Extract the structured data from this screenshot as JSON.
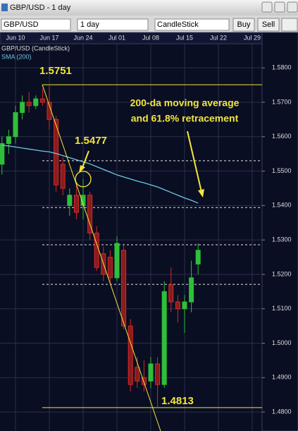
{
  "window": {
    "title": "GBP/USD - 1 day"
  },
  "toolbar": {
    "symbol": "GBP/USD",
    "interval": "1 day",
    "chart_style": "CandleStick",
    "buttons": [
      "Buy",
      "Sell"
    ]
  },
  "chart_data": {
    "type": "candlestick",
    "categories": [
      null,
      null,
      "Jun 10",
      null,
      null,
      null,
      null,
      "Jun 17",
      null,
      null,
      null,
      null,
      "Jun 24",
      null,
      null,
      null,
      null,
      "Jul 01",
      null,
      null,
      null,
      null,
      "Jul 08",
      null,
      null,
      null,
      null,
      "Jul 15",
      null,
      null,
      null,
      null,
      "Jul 22",
      null,
      null,
      null,
      null,
      "Jul 29"
    ],
    "series": [
      {
        "name": "GBP/USD (CandleStick)",
        "up_color": "#2fbf3a",
        "down_color": "#d42a2a",
        "open": [
          1.552,
          1.558,
          1.56,
          1.567,
          1.57,
          1.569,
          1.571,
          1.57,
          1.565,
          1.552,
          1.54,
          1.543,
          1.54,
          1.543,
          1.532,
          1.526,
          1.525,
          1.519,
          1.527,
          1.505,
          1.493,
          1.49,
          1.489,
          1.494,
          1.488,
          1.517,
          1.512,
          1.51,
          1.512,
          1.523,
          null,
          null,
          null,
          null,
          null,
          null,
          null,
          null
        ],
        "high": [
          1.56,
          1.562,
          1.569,
          1.572,
          1.573,
          1.572,
          1.574,
          1.5751,
          1.566,
          1.554,
          1.545,
          1.546,
          1.5477,
          1.544,
          1.534,
          1.528,
          1.527,
          1.531,
          1.529,
          1.507,
          1.496,
          1.495,
          1.496,
          1.496,
          1.518,
          1.522,
          1.514,
          1.514,
          1.524,
          1.529,
          null,
          null,
          null,
          null,
          null,
          null,
          null,
          null
        ],
        "low": [
          1.549,
          1.555,
          1.558,
          1.565,
          1.567,
          1.568,
          1.569,
          1.562,
          1.544,
          1.543,
          1.537,
          1.536,
          1.536,
          1.53,
          1.521,
          1.518,
          1.517,
          1.518,
          1.504,
          1.486,
          1.487,
          1.486,
          1.487,
          1.4813,
          1.487,
          1.509,
          1.506,
          1.503,
          1.509,
          1.52,
          null,
          null,
          null,
          null,
          null,
          null,
          null,
          null
        ],
        "close": [
          1.558,
          1.56,
          1.567,
          1.57,
          1.569,
          1.571,
          1.57,
          1.565,
          1.546,
          1.545,
          1.543,
          1.538,
          1.543,
          1.532,
          1.522,
          1.52,
          1.519,
          1.529,
          1.505,
          1.488,
          1.489,
          1.488,
          1.494,
          1.488,
          1.515,
          1.512,
          1.51,
          1.512,
          1.519,
          1.527,
          null,
          null,
          null,
          null,
          null,
          null,
          null,
          null
        ]
      },
      {
        "name": "SMA (200)",
        "color": "#6cc7e6",
        "values": [
          1.5575,
          1.5573,
          1.557,
          1.5567,
          1.5564,
          1.5561,
          1.5558,
          1.5556,
          1.5551,
          1.5545,
          1.5539,
          1.5533,
          1.5527,
          1.5521,
          1.5513,
          1.5505,
          1.5497,
          1.5489,
          1.5483,
          1.5477,
          1.5471,
          1.5466,
          1.546,
          1.5454,
          1.5446,
          1.5438,
          1.543,
          1.5422,
          1.5415,
          1.5407,
          null,
          null,
          null,
          null,
          null,
          null,
          null,
          null
        ]
      }
    ],
    "ylim": [
      1.4745,
      1.587
    ],
    "yticks": [
      {
        "value": 1.58,
        "label": "1.5800"
      },
      {
        "value": 1.57,
        "label": "1.5700"
      },
      {
        "value": 1.56,
        "label": "1.5600"
      },
      {
        "value": 1.55,
        "label": "1.5500"
      },
      {
        "value": 1.54,
        "label": "1.5400"
      },
      {
        "value": 1.53,
        "label": "1.5300"
      },
      {
        "value": 1.52,
        "label": "1.5200"
      },
      {
        "value": 1.51,
        "label": "1.5100"
      },
      {
        "value": 1.5,
        "label": "1.5000"
      },
      {
        "value": 1.49,
        "label": "1.4900"
      },
      {
        "value": 1.48,
        "label": "1.4800"
      }
    ],
    "grid": true,
    "levels": [
      {
        "value": 1.5751,
        "style": "solid"
      },
      {
        "value": 1.553,
        "style": "dashed"
      },
      {
        "value": 1.5394,
        "style": "dashed"
      },
      {
        "value": 1.5286,
        "style": "dashed"
      },
      {
        "value": 1.5171,
        "style": "dashed"
      },
      {
        "value": 1.4813,
        "style": "solid"
      }
    ],
    "level_color": "#f2e63a",
    "price_labels": [
      1.5751,
      1.5477,
      1.4813
    ],
    "note": [
      "200-da moving average",
      "and 61.8% retracement"
    ]
  }
}
